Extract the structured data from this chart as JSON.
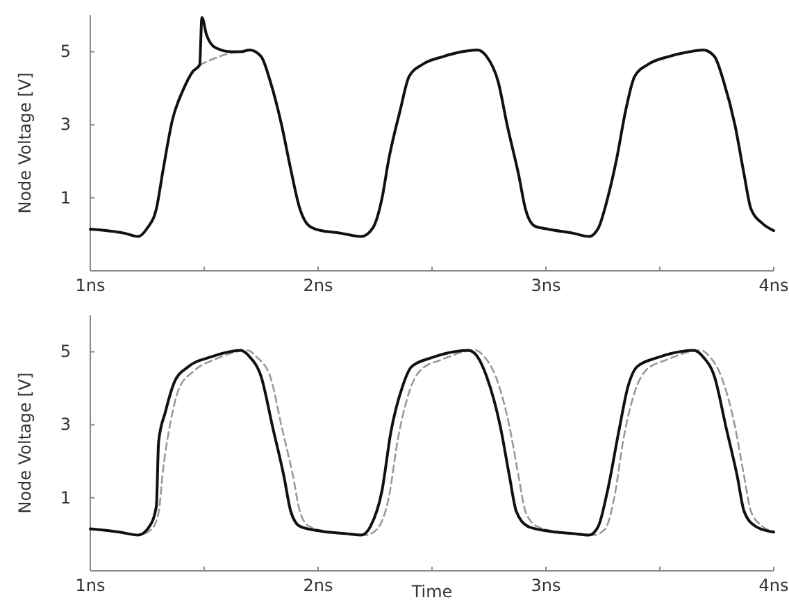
{
  "chart_data": [
    {
      "type": "line",
      "ylabel": "Node Voltage [V]",
      "xlim": [
        1,
        4
      ],
      "ylim": [
        -1,
        6
      ],
      "xticks": [
        {
          "value": 1,
          "label": "1ns"
        },
        {
          "value": 1.5,
          "label": null
        },
        {
          "value": 2,
          "label": "2ns"
        },
        {
          "value": 2.5,
          "label": null
        },
        {
          "value": 3,
          "label": "3ns"
        },
        {
          "value": 3.5,
          "label": null
        },
        {
          "value": 4,
          "label": "4ns"
        }
      ],
      "yticks": [
        1,
        3,
        5
      ],
      "grid": false,
      "marker": "none",
      "series": [
        {
          "color": "#999999",
          "line_style": "dashed",
          "x": [
            1.48,
            1.55,
            1.62,
            1.66
          ],
          "values": [
            4.64,
            4.83,
            4.97,
            5.0
          ]
        },
        {
          "color": "#111111",
          "line_style": "solid",
          "x": [
            1.0,
            1.15,
            1.21,
            1.25,
            1.29,
            1.32,
            1.36,
            1.41,
            1.45,
            1.48,
            1.49,
            1.51,
            1.55,
            1.62,
            1.66,
            1.7,
            1.75,
            1.79,
            1.84,
            1.88,
            1.92,
            1.95,
            1.99,
            2.1,
            2.19,
            2.24,
            2.28,
            2.31,
            2.36,
            2.4,
            2.46,
            2.55,
            2.63,
            2.7,
            2.74,
            2.79,
            2.83,
            2.88,
            2.91,
            2.95,
            3.01,
            3.12,
            3.19,
            3.23,
            3.27,
            3.31,
            3.35,
            3.39,
            3.45,
            3.54,
            3.63,
            3.69,
            3.74,
            3.78,
            3.83,
            3.87,
            3.9,
            3.95,
            4.0
          ],
          "values": [
            0.14,
            0.03,
            -0.06,
            0.17,
            0.7,
            1.78,
            3.12,
            3.99,
            4.46,
            4.64,
            5.94,
            5.47,
            5.11,
            5.0,
            5.0,
            5.05,
            4.87,
            4.19,
            2.99,
            1.78,
            0.7,
            0.3,
            0.14,
            0.03,
            -0.06,
            0.17,
            0.97,
            2.05,
            3.39,
            4.33,
            4.66,
            4.87,
            5.0,
            5.05,
            4.87,
            4.19,
            2.99,
            1.64,
            0.7,
            0.23,
            0.14,
            0.03,
            -0.06,
            0.17,
            0.97,
            2.05,
            3.39,
            4.33,
            4.66,
            4.87,
            5.0,
            5.05,
            4.87,
            4.19,
            2.99,
            1.64,
            0.7,
            0.3,
            0.1
          ]
        }
      ]
    },
    {
      "type": "line",
      "ylabel": "Node Voltage [V]",
      "xlabel": "Time",
      "xlim": [
        1,
        4
      ],
      "ylim": [
        -1,
        6
      ],
      "xticks": [
        {
          "value": 1,
          "label": "1ns"
        },
        {
          "value": 1.5,
          "label": null
        },
        {
          "value": 2,
          "label": "2ns"
        },
        {
          "value": 2.5,
          "label": null
        },
        {
          "value": 3,
          "label": "3ns"
        },
        {
          "value": 3.5,
          "label": null
        },
        {
          "value": 4,
          "label": "4ns"
        }
      ],
      "yticks": [
        1,
        3,
        5
      ],
      "grid": false,
      "marker": "none",
      "series": [
        {
          "color": "#999999",
          "line_style": "dashed",
          "x": [
            1.0,
            1.13,
            1.21,
            1.27,
            1.3,
            1.32,
            1.35,
            1.39,
            1.45,
            1.55,
            1.69,
            1.73,
            1.79,
            1.84,
            1.89,
            1.92,
            1.96,
            2.04,
            2.14,
            2.21,
            2.26,
            2.31,
            2.35,
            2.4,
            2.45,
            2.54,
            2.69,
            2.73,
            2.78,
            2.84,
            2.88,
            2.91,
            2.96,
            3.04,
            3.14,
            3.21,
            3.26,
            3.3,
            3.34,
            3.39,
            3.44,
            3.53,
            3.68,
            3.72,
            3.77,
            3.83,
            3.87,
            3.9,
            3.95,
            4.0
          ],
          "values": [
            0.15,
            0.06,
            -0.02,
            0.15,
            0.6,
            1.8,
            3.0,
            4.0,
            4.45,
            4.8,
            5.04,
            4.86,
            4.32,
            2.95,
            1.59,
            0.63,
            0.22,
            0.08,
            0.02,
            -0.02,
            0.15,
            1.0,
            2.6,
            3.9,
            4.5,
            4.78,
            5.04,
            4.86,
            4.32,
            2.95,
            1.59,
            0.63,
            0.22,
            0.08,
            0.02,
            -0.02,
            0.15,
            1.0,
            2.6,
            3.9,
            4.5,
            4.78,
            5.04,
            4.86,
            4.32,
            2.95,
            1.59,
            0.63,
            0.22,
            0.08
          ]
        },
        {
          "color": "#111111",
          "line_style": "solid",
          "x": [
            1.0,
            1.13,
            1.21,
            1.26,
            1.29,
            1.3,
            1.33,
            1.37,
            1.43,
            1.53,
            1.66,
            1.7,
            1.75,
            1.8,
            1.85,
            1.88,
            1.92,
            2.01,
            2.12,
            2.19,
            2.23,
            2.28,
            2.32,
            2.37,
            2.41,
            2.5,
            2.66,
            2.7,
            2.74,
            2.8,
            2.84,
            2.87,
            2.92,
            3.01,
            3.12,
            3.19,
            3.23,
            3.27,
            3.32,
            3.36,
            3.4,
            3.49,
            3.65,
            3.69,
            3.74,
            3.79,
            3.84,
            3.87,
            3.92,
            4.0
          ],
          "values": [
            0.15,
            0.06,
            -0.02,
            0.22,
            0.77,
            2.54,
            3.36,
            4.18,
            4.59,
            4.86,
            5.04,
            4.86,
            4.32,
            2.95,
            1.59,
            0.63,
            0.22,
            0.09,
            0.02,
            -0.02,
            0.22,
            1.18,
            2.82,
            4.04,
            4.59,
            4.84,
            5.04,
            4.86,
            4.32,
            2.95,
            1.59,
            0.63,
            0.22,
            0.09,
            0.02,
            -0.02,
            0.22,
            1.18,
            2.82,
            4.04,
            4.59,
            4.84,
            5.04,
            4.86,
            4.32,
            2.95,
            1.59,
            0.63,
            0.22,
            0.06
          ]
        }
      ]
    }
  ]
}
